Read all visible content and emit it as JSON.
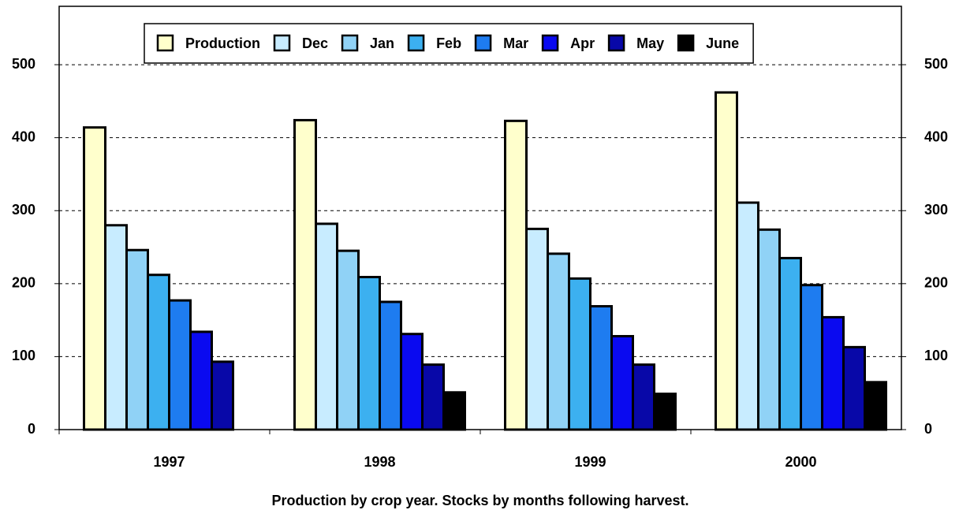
{
  "chart_data": {
    "type": "bar",
    "xlabel": "Production by crop year.  Stocks by months following harvest.",
    "categories": [
      "1997",
      "1998",
      "1999",
      "2000"
    ],
    "series": [
      {
        "name": "Production",
        "color": "#ffffcc",
        "values": [
          414,
          424,
          423,
          462
        ]
      },
      {
        "name": "Dec",
        "color": "#c8ecff",
        "values": [
          280,
          282,
          275,
          311
        ]
      },
      {
        "name": "Jan",
        "color": "#90d2f6",
        "values": [
          246,
          245,
          241,
          274
        ]
      },
      {
        "name": "Feb",
        "color": "#3cb0f0",
        "values": [
          212,
          209,
          207,
          235
        ]
      },
      {
        "name": "Mar",
        "color": "#1e7cf0",
        "values": [
          177,
          175,
          169,
          198
        ]
      },
      {
        "name": "Apr",
        "color": "#0a0af0",
        "values": [
          134,
          131,
          128,
          154
        ]
      },
      {
        "name": "May",
        "color": "#0808a8",
        "values": [
          93,
          89,
          89,
          113
        ]
      },
      {
        "name": "June",
        "color": "#000000",
        "values": [
          null,
          51,
          49,
          65
        ]
      }
    ],
    "ylim": [
      0,
      580
    ],
    "yticks": [
      0,
      100,
      200,
      300,
      400,
      500
    ],
    "y2lim": [
      0,
      580
    ],
    "y2ticks": [
      0,
      100,
      200,
      300,
      400,
      500
    ],
    "grid": true,
    "legend": "top"
  }
}
